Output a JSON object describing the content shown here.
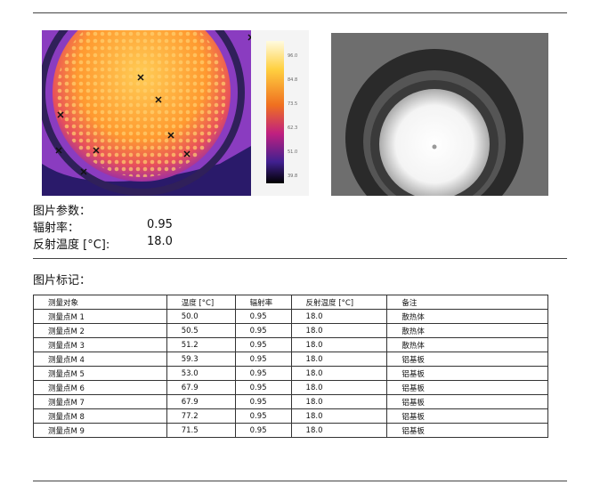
{
  "thermal_image": {
    "scale_labels": [
      "96.0",
      "84.8",
      "73.5",
      "62.3",
      "51.0",
      "39.8"
    ]
  },
  "params": {
    "title": "图片参数：",
    "rows": [
      [
        "辐射率：",
        "0.95"
      ],
      [
        "反射温度 [°C]:",
        "18.0"
      ]
    ]
  },
  "marks": {
    "title": "图片标记：",
    "table": {
      "header": [
        "测量对象",
        "温度 [°C]",
        "辐射率",
        "反射温度 [°C]",
        "备注"
      ],
      "rows": [
        [
          "测量点M 1",
          "50.0",
          "0.95",
          "18.0",
          "散热体"
        ],
        [
          "测量点M 2",
          "50.5",
          "0.95",
          "18.0",
          "散热体"
        ],
        [
          "测量点M 3",
          "51.2",
          "0.95",
          "18.0",
          "散热体"
        ],
        [
          "测量点M 4",
          "59.3",
          "0.95",
          "18.0",
          "铝基板"
        ],
        [
          "测量点M 5",
          "53.0",
          "0.95",
          "18.0",
          "铝基板"
        ],
        [
          "测量点M 6",
          "67.9",
          "0.95",
          "18.0",
          "铝基板"
        ],
        [
          "测量点M 7",
          "67.9",
          "0.95",
          "18.0",
          "铝基板"
        ],
        [
          "测量点M 8",
          "77.2",
          "0.95",
          "18.0",
          "铝基板"
        ],
        [
          "测量点M 9",
          "71.5",
          "0.95",
          "18.0",
          "铝基板"
        ]
      ]
    }
  }
}
